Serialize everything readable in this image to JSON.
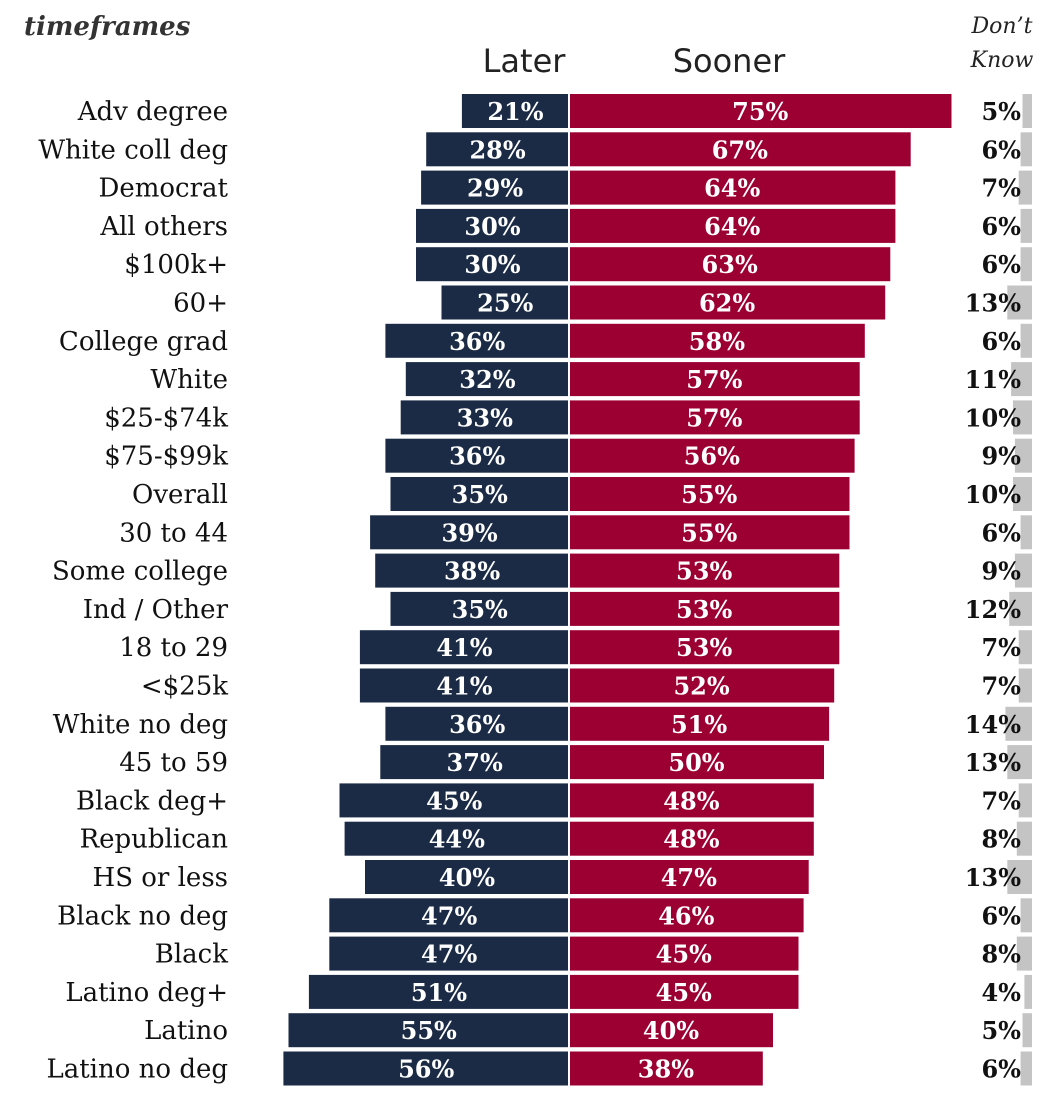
{
  "header": {
    "title_fragment": "timeframes",
    "later_label": "Later",
    "sooner_label": "Sooner",
    "dk_label_line1": "Don’t",
    "dk_label_line2": "Know"
  },
  "colors": {
    "later": "#1b2b45",
    "sooner": "#9c0033",
    "dont_know": "#c4c4c4"
  },
  "chart_data": {
    "type": "bar",
    "orientation": "horizontal-diverging",
    "categories": [
      "Adv degree",
      "White coll deg",
      "Democrat",
      "All others",
      "$100k+",
      "60+",
      "College grad",
      "White",
      "$25-$74k",
      "$75-$99k",
      "Overall",
      "30 to 44",
      "Some college",
      "Ind / Other",
      "18 to 29",
      "<$25k",
      "White no deg",
      "45 to 59",
      "Black deg+",
      "Republican",
      "HS or less",
      "Black no deg",
      "Black",
      "Latino deg+",
      "Latino",
      "Latino no deg"
    ],
    "series": [
      {
        "name": "Later",
        "values": [
          21,
          28,
          29,
          30,
          30,
          25,
          36,
          32,
          33,
          36,
          35,
          39,
          38,
          35,
          41,
          41,
          36,
          37,
          45,
          44,
          40,
          47,
          47,
          51,
          55,
          56
        ]
      },
      {
        "name": "Sooner",
        "values": [
          75,
          67,
          64,
          64,
          63,
          62,
          58,
          57,
          57,
          56,
          55,
          55,
          53,
          53,
          53,
          52,
          51,
          50,
          48,
          48,
          47,
          46,
          45,
          45,
          40,
          38
        ]
      },
      {
        "name": "Don’t Know",
        "values": [
          5,
          6,
          7,
          6,
          6,
          13,
          6,
          11,
          10,
          9,
          10,
          6,
          9,
          12,
          7,
          7,
          14,
          13,
          7,
          8,
          13,
          6,
          8,
          4,
          5,
          6
        ]
      }
    ],
    "value_suffix": "%",
    "xlim": [
      0,
      100
    ],
    "grid": false,
    "legend": "top"
  }
}
